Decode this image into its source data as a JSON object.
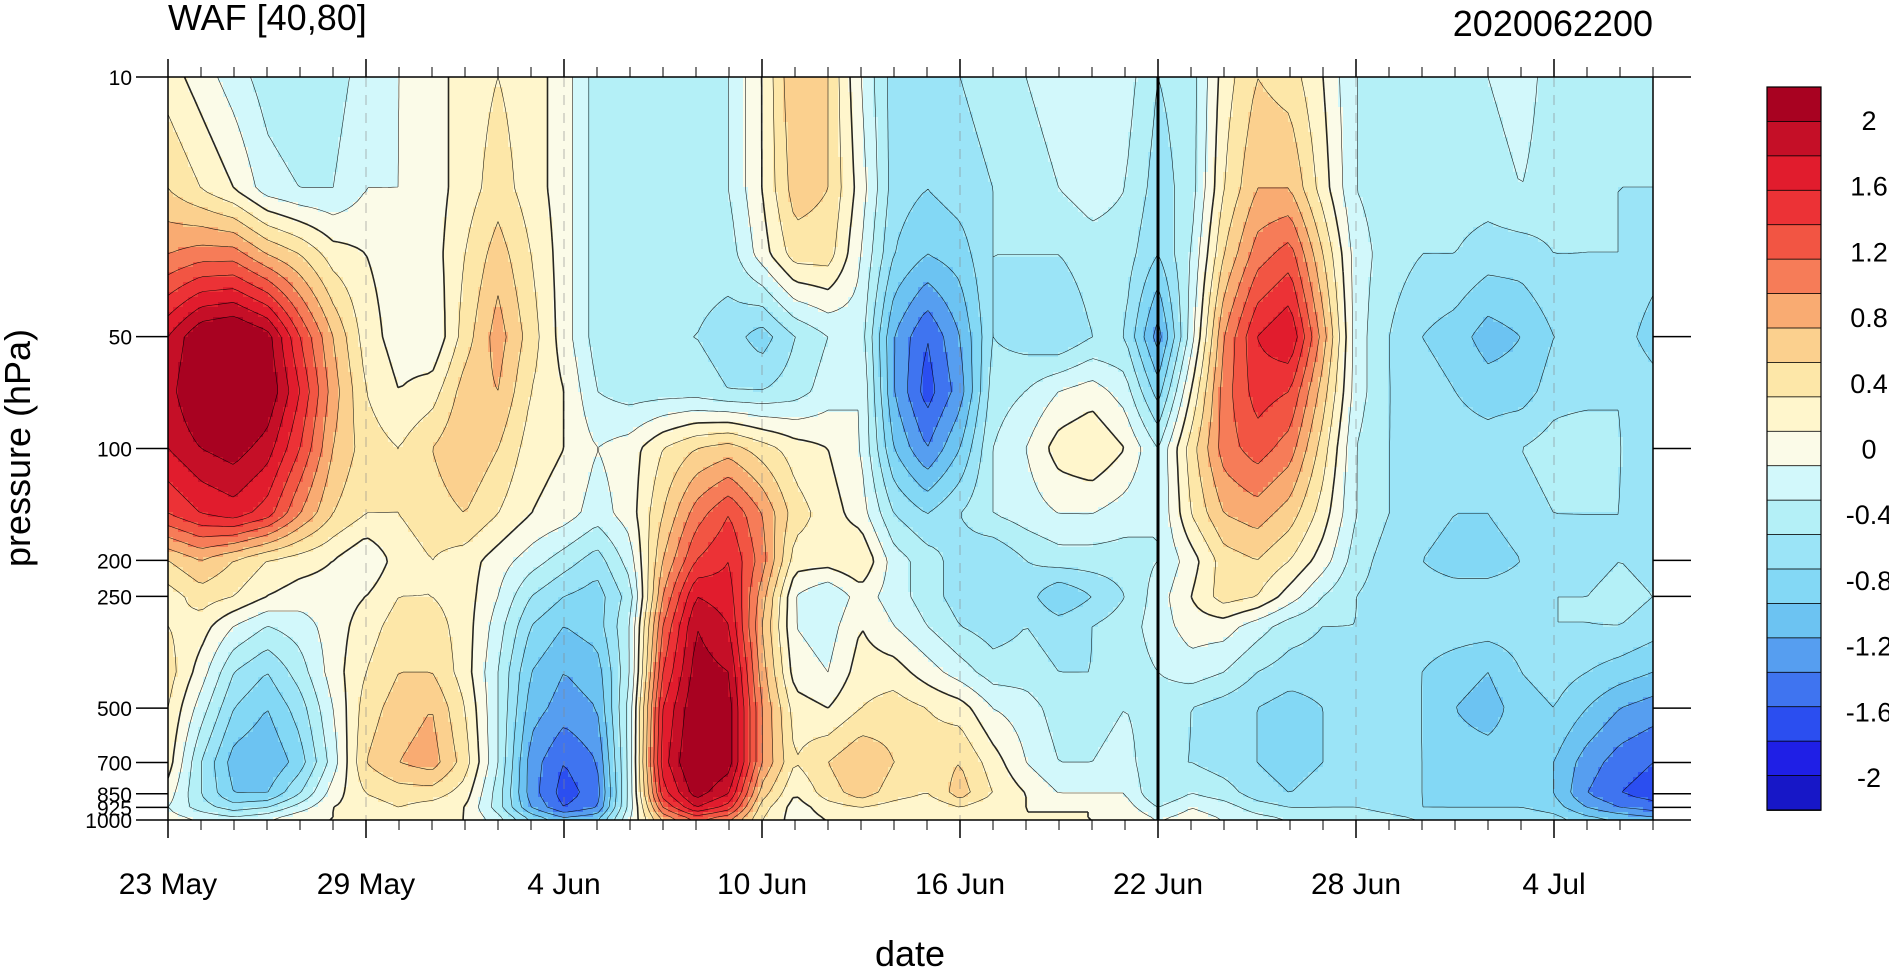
{
  "chart_data": {
    "type": "heatmap",
    "title_left": "WAF [40,80]",
    "title_right": "2020062200",
    "xlabel": "date",
    "ylabel": "pressure (hPa)",
    "x_tick_labels": [
      "23 May",
      "29 May",
      "4 Jun",
      "10 Jun",
      "16 Jun",
      "22 Jun",
      "28 Jun",
      "4 Jul"
    ],
    "x_range_days": [
      0,
      45
    ],
    "x_major_every_days": 6,
    "marker_line_label": "22 Jun",
    "marker_line_day": 30,
    "y_scale": "log",
    "y_range": [
      1000,
      10
    ],
    "y_tick_labels": [
      "10",
      "50",
      "100",
      "200",
      "250",
      "500",
      "700",
      "850",
      "925",
      "1000"
    ],
    "y_tick_values": [
      10,
      50,
      100,
      200,
      250,
      500,
      700,
      850,
      925,
      1000
    ],
    "colorbar_labels": [
      "2",
      "1.6",
      "1.2",
      "0.8",
      "0.4",
      "0",
      "-0.4",
      "-0.8",
      "-1.2",
      "-1.6",
      "-2"
    ],
    "colorbar_levels_min": -2.2,
    "colorbar_levels_max": 2.2,
    "colorbar_level_step": 0.2,
    "colorbar_colors": [
      "#1717c7",
      "#1f1fe6",
      "#2b4ef0",
      "#3f74f0",
      "#569ef0",
      "#6cc3f2",
      "#83d8f5",
      "#9be4f7",
      "#b4f0f7",
      "#d2f8fb",
      "#fbfbe8",
      "#fff6cc",
      "#fde7a8",
      "#fbd08e",
      "#f9ab72",
      "#f67c58",
      "#f25543",
      "#ec3236",
      "#e11c2d",
      "#c50f27",
      "#a80221"
    ],
    "dates": [
      "23 May",
      "24 May",
      "25 May",
      "26 May",
      "27 May",
      "28 May",
      "29 May",
      "30 May",
      "31 May",
      "1 Jun",
      "2 Jun",
      "3 Jun",
      "4 Jun",
      "5 Jun",
      "6 Jun",
      "7 Jun",
      "8 Jun",
      "9 Jun",
      "10 Jun",
      "11 Jun",
      "12 Jun",
      "13 Jun",
      "14 Jun",
      "15 Jun",
      "16 Jun",
      "17 Jun",
      "18 Jun",
      "19 Jun",
      "20 Jun",
      "21 Jun",
      "22 Jun",
      "23 Jun",
      "24 Jun",
      "25 Jun",
      "26 Jun",
      "27 Jun",
      "28 Jun",
      "29 Jun",
      "30 Jun",
      "1 Jul",
      "2 Jul",
      "3 Jul",
      "4 Jul",
      "5 Jul",
      "6 Jul",
      "7 Jul"
    ],
    "levels_hPa": [
      10,
      20,
      30,
      50,
      70,
      100,
      150,
      200,
      250,
      300,
      400,
      500,
      700,
      850,
      925,
      1000
    ],
    "values_note_units": "WAF",
    "values": [
      [
        0.1,
        -0.1,
        -0.3,
        -0.5,
        -0.6,
        -0.5,
        -0.3,
        -0.2,
        -0.1,
        0.1,
        0.2,
        0.1,
        -0.1,
        -0.5,
        -0.6,
        -0.6,
        -0.5,
        -0.4,
        0.0,
        0.6,
        0.4,
        -0.2,
        -0.7,
        -0.7,
        -0.6,
        -0.5,
        -0.4,
        -0.3,
        -0.2,
        -0.3,
        -0.6,
        -0.5,
        0.1,
        0.4,
        0.3,
        0.0,
        -0.4,
        -0.5,
        -0.5,
        -0.5,
        -0.4,
        -0.3,
        -0.5,
        -0.6,
        -0.6,
        -0.6
      ],
      [
        0.4,
        0.2,
        0.0,
        -0.3,
        -0.4,
        -0.4,
        -0.2,
        -0.2,
        -0.1,
        0.1,
        0.3,
        0.1,
        -0.1,
        -0.5,
        -0.6,
        -0.6,
        -0.5,
        -0.4,
        0.0,
        0.5,
        0.4,
        -0.1,
        -0.7,
        -0.8,
        -0.7,
        -0.6,
        -0.5,
        -0.4,
        -0.3,
        -0.4,
        -0.7,
        -0.5,
        0.2,
        0.6,
        0.6,
        0.1,
        -0.4,
        -0.5,
        -0.5,
        -0.5,
        -0.5,
        -0.4,
        -0.5,
        -0.6,
        -0.6,
        -0.6
      ],
      [
        0.8,
        0.9,
        0.9,
        0.6,
        0.4,
        0.1,
        0.0,
        -0.1,
        -0.1,
        0.2,
        0.5,
        0.2,
        -0.1,
        -0.5,
        -0.6,
        -0.6,
        -0.5,
        -0.5,
        -0.1,
        0.3,
        0.3,
        -0.2,
        -0.8,
        -1.0,
        -0.9,
        -0.6,
        -0.6,
        -0.6,
        -0.5,
        -0.5,
        -0.8,
        -0.4,
        0.4,
        0.9,
        1.1,
        0.4,
        -0.3,
        -0.5,
        -0.6,
        -0.6,
        -0.7,
        -0.7,
        -0.6,
        -0.6,
        -0.6,
        -0.7
      ],
      [
        1.6,
        2.0,
        2.1,
        1.9,
        1.2,
        0.6,
        0.1,
        -0.1,
        -0.2,
        0.3,
        0.7,
        0.3,
        -0.1,
        -0.5,
        -0.6,
        -0.6,
        -0.6,
        -0.7,
        -0.9,
        -0.6,
        -0.4,
        -0.3,
        -1.2,
        -1.6,
        -1.2,
        -0.6,
        -0.7,
        -0.8,
        -0.6,
        -0.6,
        -1.3,
        -0.3,
        0.8,
        1.4,
        1.6,
        0.7,
        -0.3,
        -0.6,
        -0.8,
        -0.9,
        -1.1,
        -1.0,
        -0.8,
        -0.7,
        -0.7,
        -0.9
      ],
      [
        1.7,
        2.1,
        2.2,
        2.0,
        1.4,
        0.7,
        0.2,
        0.0,
        0.1,
        0.5,
        0.6,
        0.2,
        0.0,
        -0.4,
        -0.5,
        -0.5,
        -0.5,
        -0.6,
        -0.6,
        -0.5,
        -0.3,
        -0.2,
        -1.2,
        -1.7,
        -1.3,
        -0.5,
        -0.4,
        -0.2,
        -0.1,
        -0.3,
        -0.9,
        0.0,
        0.9,
        1.3,
        1.2,
        0.5,
        -0.3,
        -0.6,
        -0.7,
        -0.8,
        -0.9,
        -0.9,
        -0.7,
        -0.7,
        -0.6,
        -0.7
      ],
      [
        1.6,
        1.8,
        1.9,
        1.7,
        1.2,
        0.6,
        0.3,
        0.2,
        0.4,
        0.6,
        0.4,
        0.1,
        0.0,
        -0.2,
        -0.1,
        0.2,
        0.4,
        0.5,
        0.3,
        0.1,
        0.0,
        -0.2,
        -1.0,
        -1.4,
        -1.0,
        -0.4,
        -0.2,
        0.1,
        0.2,
        0.0,
        -0.4,
        0.3,
        0.9,
        1.1,
        0.9,
        0.3,
        -0.4,
        -0.6,
        -0.7,
        -0.7,
        -0.7,
        -0.6,
        -0.5,
        -0.4,
        -0.6,
        -0.7
      ],
      [
        1.2,
        1.4,
        1.5,
        1.3,
        0.8,
        0.4,
        0.2,
        0.2,
        0.3,
        0.4,
        0.2,
        0.0,
        -0.1,
        -0.3,
        -0.1,
        0.4,
        0.9,
        1.2,
        0.8,
        0.3,
        0.1,
        -0.1,
        -0.6,
        -0.8,
        -0.6,
        -0.4,
        -0.3,
        -0.2,
        -0.2,
        -0.3,
        -0.4,
        0.2,
        0.6,
        0.7,
        0.5,
        0.1,
        -0.4,
        -0.6,
        -0.7,
        -0.8,
        -0.8,
        -0.7,
        -0.6,
        -0.6,
        -0.6,
        -0.7
      ],
      [
        0.4,
        0.6,
        0.4,
        0.2,
        0.1,
        0.0,
        -0.2,
        0.1,
        0.2,
        0.1,
        -0.1,
        -0.3,
        -0.5,
        -0.7,
        -0.3,
        0.6,
        1.2,
        1.4,
        0.9,
        0.1,
        0.1,
        0.2,
        -0.3,
        -0.5,
        -0.7,
        -0.8,
        -0.6,
        -0.5,
        -0.5,
        -0.5,
        -0.4,
        -0.1,
        0.3,
        0.4,
        0.2,
        -0.1,
        -0.5,
        -0.7,
        -0.8,
        -0.9,
        -0.9,
        -0.8,
        -0.7,
        -0.7,
        -0.6,
        -0.7
      ],
      [
        0.1,
        0.3,
        0.2,
        0.0,
        -0.1,
        -0.1,
        0.0,
        0.2,
        0.2,
        0.1,
        -0.2,
        -0.6,
        -0.8,
        -0.9,
        -0.5,
        0.8,
        1.6,
        1.5,
        0.7,
        -0.2,
        -0.4,
        -0.1,
        -0.3,
        -0.5,
        -0.7,
        -0.8,
        -0.7,
        -1.0,
        -0.8,
        -0.6,
        -0.3,
        0.0,
        0.3,
        0.2,
        -0.1,
        -0.4,
        -0.6,
        -0.7,
        -0.7,
        -0.7,
        -0.7,
        -0.7,
        -0.6,
        -0.6,
        -0.5,
        -0.6
      ],
      [
        0.2,
        0.1,
        -0.2,
        -0.4,
        -0.3,
        -0.1,
        0.1,
        0.3,
        0.3,
        0.1,
        -0.3,
        -0.8,
        -1.0,
        -0.9,
        -0.4,
        1.0,
        1.8,
        1.6,
        0.6,
        -0.2,
        -0.3,
        0.0,
        -0.2,
        -0.4,
        -0.6,
        -0.7,
        -0.6,
        -0.7,
        -0.6,
        -0.5,
        -0.3,
        -0.1,
        -0.1,
        -0.3,
        -0.5,
        -0.6,
        -0.6,
        -0.7,
        -0.7,
        -0.7,
        -0.7,
        -0.7,
        -0.6,
        -0.6,
        -0.6,
        -0.7
      ],
      [
        0.3,
        -0.1,
        -0.6,
        -0.8,
        -0.5,
        -0.1,
        0.2,
        0.4,
        0.4,
        0.1,
        -0.4,
        -1.0,
        -1.2,
        -1.1,
        -0.4,
        1.2,
        1.9,
        1.8,
        0.7,
        -0.1,
        -0.2,
        0.1,
        0.1,
        -0.1,
        -0.3,
        -0.5,
        -0.5,
        -0.6,
        -0.6,
        -0.5,
        -0.4,
        -0.3,
        -0.4,
        -0.6,
        -0.7,
        -0.7,
        -0.7,
        -0.7,
        -0.8,
        -0.9,
        -1.0,
        -0.8,
        -0.7,
        -0.8,
        -0.9,
        -1.0
      ],
      [
        0.2,
        -0.3,
        -0.8,
        -1.0,
        -0.7,
        -0.2,
        0.3,
        0.5,
        0.6,
        0.2,
        -0.4,
        -1.1,
        -1.3,
        -1.2,
        -0.3,
        1.4,
        2.0,
        1.9,
        0.8,
        0.1,
        0.0,
        0.2,
        0.3,
        0.2,
        0.1,
        -0.2,
        -0.3,
        -0.5,
        -0.5,
        -0.4,
        -0.5,
        -0.6,
        -0.7,
        -0.8,
        -0.9,
        -0.8,
        -0.7,
        -0.7,
        -0.8,
        -1.0,
        -1.1,
        -0.9,
        -0.8,
        -1.0,
        -1.2,
        -1.3
      ],
      [
        0.1,
        -0.6,
        -1.1,
        -1.2,
        -0.9,
        -0.3,
        0.4,
        0.6,
        0.7,
        0.3,
        -0.4,
        -1.3,
        -1.6,
        -1.4,
        -0.3,
        1.5,
        2.1,
        1.9,
        0.8,
        0.2,
        0.4,
        0.6,
        0.4,
        0.3,
        0.4,
        0.1,
        -0.2,
        -0.4,
        -0.4,
        -0.3,
        -0.6,
        -0.6,
        -0.7,
        -0.8,
        -0.9,
        -0.8,
        -0.7,
        -0.7,
        -0.8,
        -0.9,
        -0.9,
        -0.9,
        -1.0,
        -1.3,
        -1.5,
        -1.6
      ],
      [
        -0.1,
        -0.6,
        -1.0,
        -1.0,
        -0.6,
        -0.1,
        0.2,
        0.3,
        0.3,
        0.1,
        -0.5,
        -1.3,
        -1.7,
        -1.5,
        -0.3,
        1.3,
        1.9,
        1.6,
        0.5,
        0.0,
        0.3,
        0.5,
        0.3,
        0.2,
        0.5,
        0.2,
        0.0,
        -0.2,
        -0.2,
        -0.2,
        -0.6,
        -0.4,
        -0.5,
        -0.7,
        -0.8,
        -0.7,
        -0.6,
        -0.7,
        -0.8,
        -0.9,
        -0.9,
        -0.9,
        -1.0,
        -1.4,
        -1.6,
        -1.7
      ],
      [
        -0.2,
        -0.5,
        -0.7,
        -0.6,
        -0.3,
        0.0,
        0.1,
        0.2,
        0.1,
        0.0,
        -0.5,
        -1.2,
        -1.6,
        -1.4,
        -0.3,
        1.0,
        1.6,
        1.3,
        0.3,
        -0.1,
        0.1,
        0.2,
        0.1,
        0.0,
        0.2,
        0.0,
        0.0,
        0.0,
        0.0,
        -0.1,
        -0.4,
        -0.2,
        -0.3,
        -0.5,
        -0.6,
        -0.6,
        -0.6,
        -0.7,
        -0.8,
        -0.8,
        -0.8,
        -0.8,
        -0.9,
        -1.2,
        -1.4,
        -1.5
      ],
      [
        -0.1,
        -0.2,
        -0.3,
        -0.2,
        0.0,
        0.0,
        0.0,
        0.1,
        0.0,
        0.0,
        -0.3,
        -0.8,
        -1.1,
        -1.0,
        -0.2,
        0.6,
        1.0,
        0.8,
        0.2,
        -0.1,
        0.0,
        0.1,
        0.0,
        0.0,
        0.0,
        0.0,
        0.0,
        0.0,
        0.0,
        0.0,
        -0.2,
        -0.1,
        -0.2,
        -0.3,
        -0.4,
        -0.4,
        -0.4,
        -0.5,
        -0.6,
        -0.6,
        -0.6,
        -0.6,
        -0.7,
        -0.9,
        -1.0,
        -1.1
      ]
    ]
  }
}
